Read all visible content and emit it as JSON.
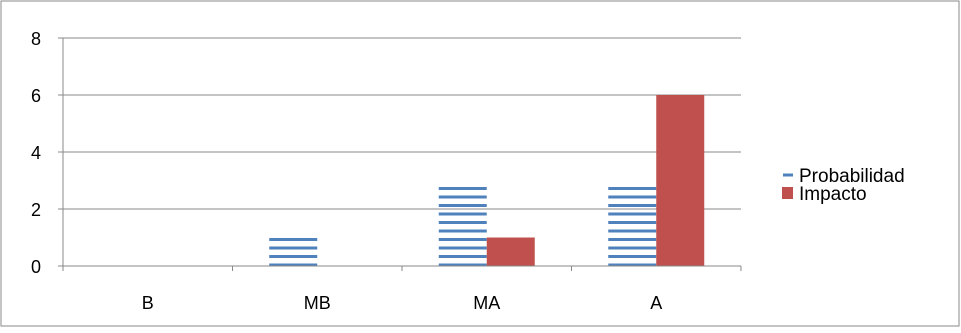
{
  "chart_data": {
    "type": "bar",
    "title": "",
    "xlabel": "",
    "ylabel": "",
    "categories": [
      "B",
      "MB",
      "MA",
      "A"
    ],
    "ylim": [
      0,
      8
    ],
    "yticks": [
      "0",
      "2",
      "4",
      "6",
      "8"
    ],
    "grid": true,
    "legend": "right",
    "series": [
      {
        "name": "Probabilidad",
        "values": [
          0,
          1,
          2.85,
          2.85
        ],
        "color": "#4f81bd",
        "pattern": "horizontal-lines"
      },
      {
        "name": "Impacto",
        "values": [
          0,
          0,
          1,
          6
        ],
        "color": "#c0504d",
        "pattern": "solid"
      }
    ]
  }
}
